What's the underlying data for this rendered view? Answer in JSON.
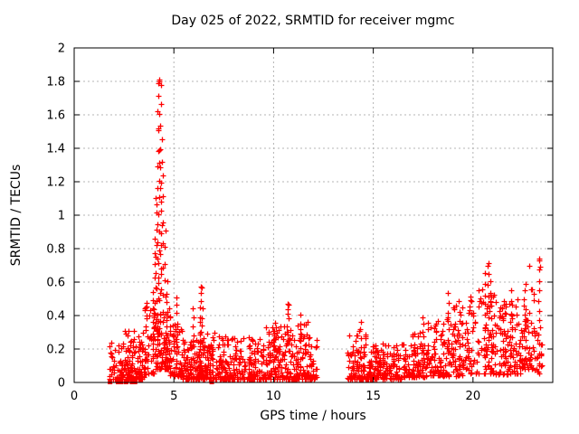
{
  "window": {
    "background": "#ffffff"
  },
  "chart_data": {
    "type": "scatter",
    "title": "Day 025 of 2022, SRMTID for receiver mgmc",
    "xlabel": "GPS time / hours",
    "ylabel": "SRMTID / TECUs",
    "xlim": [
      0,
      24
    ],
    "ylim": [
      0,
      2
    ],
    "xticks": [
      [
        0,
        "0"
      ],
      [
        5,
        "5"
      ],
      [
        10,
        "10"
      ],
      [
        15,
        "15"
      ],
      [
        20,
        "20"
      ]
    ],
    "yticks": [
      [
        0,
        "0"
      ],
      [
        0.2,
        "0.2"
      ],
      [
        0.4,
        "0.4"
      ],
      [
        0.6,
        "0.6"
      ],
      [
        0.8,
        "0.8"
      ],
      [
        1,
        "1"
      ],
      [
        1.2,
        "1.2"
      ],
      [
        1.4,
        "1.4"
      ],
      [
        1.6,
        "1.6"
      ],
      [
        1.8,
        "1.8"
      ],
      [
        2,
        "2"
      ]
    ],
    "grid": "dashed-at-major-ticks",
    "legend": "none",
    "marker": "plus",
    "marker_color": "#ff0000",
    "square_marker_color": "#ff0000",
    "grid_color": "#b4b4b4",
    "axis_color": "#000000",
    "background": "#ffffff",
    "seed": 20220125,
    "data_gap_hours": [
      12.2,
      13.7
    ],
    "notable_points": [
      [
        4.25,
        1.8
      ],
      [
        4.22,
        1.79
      ],
      [
        6.38,
        0.57
      ],
      [
        10.7,
        0.47
      ],
      [
        20.75,
        0.7
      ],
      [
        22.8,
        0.7
      ],
      [
        23.35,
        0.69
      ],
      [
        23.3,
        0.73
      ]
    ],
    "baseline_square_markers_x": [
      1.8,
      2.2,
      2.35,
      2.6,
      2.9,
      3.05,
      6.9
    ],
    "scatter_bands": [
      {
        "x0": 1.75,
        "x1": 2.5,
        "n": 55,
        "ymin": 0.02,
        "ymax": 0.24,
        "skew": 2.2
      },
      {
        "x0": 2.5,
        "x1": 3.5,
        "n": 130,
        "ymin": 0.02,
        "ymax": 0.31,
        "skew": 2.2
      },
      {
        "x0": 3.5,
        "x1": 4.0,
        "n": 50,
        "ymin": 0.05,
        "ymax": 0.5,
        "skew": 1.7
      },
      {
        "x0": 4.0,
        "x1": 4.8,
        "n": 90,
        "ymin": 0.08,
        "ymax": 0.42,
        "skew": 1.8
      },
      {
        "x0": 4.8,
        "x1": 5.4,
        "n": 65,
        "ymin": 0.04,
        "ymax": 0.35,
        "skew": 2.0
      },
      {
        "x0": 5.4,
        "x1": 6.2,
        "n": 85,
        "ymin": 0.02,
        "ymax": 0.26,
        "skew": 2.0
      },
      {
        "x0": 6.2,
        "x1": 7.2,
        "n": 110,
        "ymin": 0.02,
        "ymax": 0.3,
        "skew": 2.1
      },
      {
        "x0": 7.2,
        "x1": 8.4,
        "n": 120,
        "ymin": 0.02,
        "ymax": 0.28,
        "skew": 2.2
      },
      {
        "x0": 8.4,
        "x1": 9.6,
        "n": 110,
        "ymin": 0.02,
        "ymax": 0.27,
        "skew": 2.2
      },
      {
        "x0": 9.6,
        "x1": 10.6,
        "n": 100,
        "ymin": 0.02,
        "ymax": 0.34,
        "skew": 2.0
      },
      {
        "x0": 10.6,
        "x1": 11.7,
        "n": 110,
        "ymin": 0.02,
        "ymax": 0.36,
        "skew": 2.0
      },
      {
        "x0": 11.7,
        "x1": 12.2,
        "n": 45,
        "ymin": 0.02,
        "ymax": 0.28,
        "skew": 2.0
      },
      {
        "x0": 13.7,
        "x1": 14.7,
        "n": 90,
        "ymin": 0.02,
        "ymax": 0.3,
        "skew": 2.2
      },
      {
        "x0": 14.7,
        "x1": 16.5,
        "n": 160,
        "ymin": 0.02,
        "ymax": 0.23,
        "skew": 2.2
      },
      {
        "x0": 16.5,
        "x1": 17.6,
        "n": 95,
        "ymin": 0.03,
        "ymax": 0.3,
        "skew": 2.0
      },
      {
        "x0": 17.6,
        "x1": 18.6,
        "n": 85,
        "ymin": 0.04,
        "ymax": 0.38,
        "skew": 2.0
      },
      {
        "x0": 18.6,
        "x1": 19.8,
        "n": 95,
        "ymin": 0.04,
        "ymax": 0.46,
        "skew": 2.0
      },
      {
        "x0": 19.8,
        "x1": 21.1,
        "n": 90,
        "ymin": 0.05,
        "ymax": 0.56,
        "skew": 1.8
      },
      {
        "x0": 21.1,
        "x1": 22.4,
        "n": 110,
        "ymin": 0.05,
        "ymax": 0.5,
        "skew": 1.8
      },
      {
        "x0": 22.4,
        "x1": 23.1,
        "n": 60,
        "ymin": 0.08,
        "ymax": 0.56,
        "skew": 1.6
      },
      {
        "x0": 23.1,
        "x1": 23.45,
        "n": 18,
        "ymin": 0.05,
        "ymax": 0.35,
        "skew": 1.5
      }
    ],
    "vertical_strings": [
      {
        "x": 3.95,
        "ymin": 0.15,
        "ymax": 0.55,
        "n": 8
      },
      {
        "x": 4.05,
        "ymin": 0.2,
        "ymax": 0.85,
        "n": 10
      },
      {
        "x": 4.12,
        "ymin": 0.3,
        "ymax": 1.1,
        "n": 10
      },
      {
        "x": 4.18,
        "ymin": 0.4,
        "ymax": 1.62,
        "n": 12
      },
      {
        "x": 4.25,
        "ymin": 0.5,
        "ymax": 1.8,
        "n": 14
      },
      {
        "x": 4.32,
        "ymin": 0.4,
        "ymax": 1.78,
        "n": 12
      },
      {
        "x": 4.4,
        "ymin": 0.3,
        "ymax": 1.45,
        "n": 10
      },
      {
        "x": 4.46,
        "ymin": 0.25,
        "ymax": 1.25,
        "n": 8
      },
      {
        "x": 4.55,
        "ymin": 0.2,
        "ymax": 0.9,
        "n": 8
      },
      {
        "x": 4.65,
        "ymin": 0.15,
        "ymax": 0.6,
        "n": 8
      },
      {
        "x": 4.78,
        "ymin": 0.1,
        "ymax": 0.45,
        "n": 6
      },
      {
        "x": 5.15,
        "ymin": 0.2,
        "ymax": 0.5,
        "n": 7
      },
      {
        "x": 5.95,
        "ymin": 0.15,
        "ymax": 0.45,
        "n": 6
      },
      {
        "x": 6.3,
        "ymin": 0.2,
        "ymax": 0.45,
        "n": 6
      },
      {
        "x": 6.38,
        "ymin": 0.25,
        "ymax": 0.57,
        "n": 8
      },
      {
        "x": 10.05,
        "ymin": 0.2,
        "ymax": 0.35,
        "n": 5
      },
      {
        "x": 10.7,
        "ymin": 0.25,
        "ymax": 0.47,
        "n": 8
      },
      {
        "x": 11.35,
        "ymin": 0.2,
        "ymax": 0.4,
        "n": 6
      },
      {
        "x": 14.35,
        "ymin": 0.15,
        "ymax": 0.37,
        "n": 7
      },
      {
        "x": 17.5,
        "ymin": 0.15,
        "ymax": 0.38,
        "n": 7
      },
      {
        "x": 18.75,
        "ymin": 0.2,
        "ymax": 0.52,
        "n": 7
      },
      {
        "x": 19.3,
        "ymin": 0.15,
        "ymax": 0.5,
        "n": 6
      },
      {
        "x": 20.6,
        "ymin": 0.15,
        "ymax": 0.66,
        "n": 9
      },
      {
        "x": 20.75,
        "ymin": 0.2,
        "ymax": 0.7,
        "n": 9
      },
      {
        "x": 20.9,
        "ymin": 0.15,
        "ymax": 0.6,
        "n": 7
      },
      {
        "x": 21.9,
        "ymin": 0.15,
        "ymax": 0.55,
        "n": 7
      },
      {
        "x": 22.6,
        "ymin": 0.2,
        "ymax": 0.6,
        "n": 8
      },
      {
        "x": 23.3,
        "ymin": 0.05,
        "ymax": 0.73,
        "n": 12
      }
    ]
  }
}
